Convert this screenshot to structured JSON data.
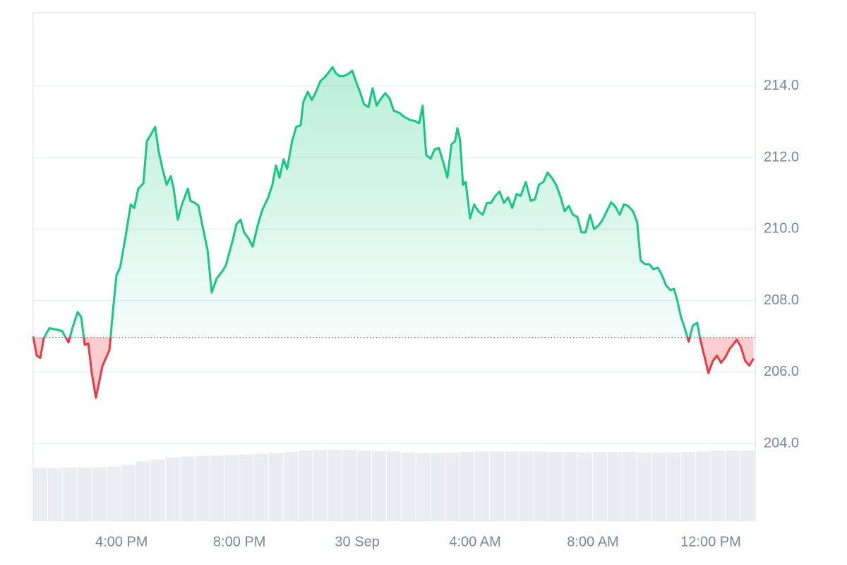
{
  "chart_data": {
    "type": "line",
    "x": [
      13.0,
      13.12,
      13.24,
      13.36,
      13.55,
      13.79,
      13.98,
      14.2,
      14.34,
      14.51,
      14.63,
      14.75,
      14.87,
      14.99,
      15.13,
      15.35,
      15.59,
      15.71,
      15.83,
      15.95,
      16.14,
      16.31,
      16.43,
      16.57,
      16.74,
      16.86,
      16.98,
      17.14,
      17.26,
      17.38,
      17.53,
      17.67,
      17.77,
      17.91,
      18.05,
      18.25,
      18.34,
      18.49,
      18.61,
      18.77,
      18.92,
      19.06,
      19.23,
      19.42,
      19.54,
      19.68,
      19.78,
      19.9,
      20.04,
      20.16,
      20.33,
      20.45,
      20.62,
      20.78,
      20.98,
      21.12,
      21.24,
      21.36,
      21.5,
      21.62,
      21.79,
      21.93,
      22.08,
      22.17,
      22.32,
      22.46,
      22.6,
      22.75,
      22.89,
      23.04,
      23.16,
      23.28,
      23.4,
      23.54,
      23.68,
      23.83,
      23.95,
      24.09,
      24.23,
      24.38,
      24.52,
      24.66,
      24.81,
      24.95,
      25.1,
      25.24,
      25.43,
      25.57,
      25.77,
      25.96,
      26.1,
      26.22,
      26.34,
      26.49,
      26.63,
      26.77,
      26.92,
      27.06,
      27.2,
      27.32,
      27.4,
      27.49,
      27.59,
      27.68,
      27.83,
      27.97,
      28.11,
      28.26,
      28.4,
      28.54,
      28.69,
      28.83,
      28.98,
      29.12,
      29.26,
      29.41,
      29.55,
      29.72,
      29.89,
      30.03,
      30.17,
      30.32,
      30.46,
      30.6,
      30.75,
      30.89,
      31.04,
      31.18,
      31.32,
      31.47,
      31.61,
      31.75,
      31.9,
      32.04,
      32.19,
      32.33,
      32.47,
      32.62,
      32.76,
      32.91,
      33.05,
      33.19,
      33.36,
      33.5,
      33.62,
      33.77,
      33.91,
      34.05,
      34.2,
      34.34,
      34.48,
      34.63,
      34.75,
      34.87,
      34.99,
      35.11,
      35.25,
      35.39,
      35.54,
      35.66,
      35.78,
      35.92,
      36.07,
      36.21,
      36.35,
      36.5,
      36.64,
      36.78,
      36.88,
      37.02,
      37.17,
      37.31,
      37.45
    ],
    "values": [
      207.0,
      206.46,
      206.4,
      206.95,
      207.23,
      207.19,
      207.15,
      206.83,
      207.25,
      207.68,
      207.54,
      206.76,
      206.8,
      205.97,
      205.28,
      206.17,
      206.62,
      207.74,
      208.72,
      208.92,
      209.81,
      210.69,
      210.59,
      211.13,
      211.28,
      212.46,
      212.62,
      212.86,
      212.17,
      211.72,
      211.24,
      211.48,
      211.13,
      210.26,
      210.69,
      211.13,
      210.79,
      210.73,
      210.65,
      210.0,
      209.41,
      208.23,
      208.62,
      208.82,
      208.98,
      209.41,
      209.71,
      210.14,
      210.26,
      209.91,
      209.71,
      209.51,
      210.1,
      210.54,
      210.89,
      211.24,
      211.78,
      211.44,
      211.95,
      211.68,
      212.46,
      212.86,
      212.9,
      213.55,
      213.84,
      213.61,
      213.84,
      214.14,
      214.24,
      214.39,
      214.53,
      214.35,
      214.28,
      214.28,
      214.33,
      214.43,
      214.14,
      213.84,
      213.49,
      213.41,
      213.94,
      213.45,
      213.65,
      213.8,
      213.65,
      213.31,
      213.25,
      213.15,
      213.06,
      213.02,
      212.96,
      213.45,
      212.07,
      211.97,
      212.23,
      212.27,
      211.87,
      211.44,
      212.37,
      212.46,
      212.82,
      212.5,
      211.24,
      211.32,
      210.3,
      210.69,
      210.5,
      210.4,
      210.73,
      210.73,
      210.93,
      211.05,
      210.73,
      210.89,
      210.59,
      210.98,
      210.93,
      211.32,
      210.79,
      210.83,
      211.24,
      211.32,
      211.58,
      211.44,
      211.24,
      210.93,
      210.5,
      210.65,
      210.4,
      210.34,
      209.91,
      209.91,
      210.4,
      210.0,
      210.1,
      210.26,
      210.5,
      210.75,
      210.63,
      210.4,
      210.69,
      210.65,
      210.5,
      210.2,
      209.12,
      209.02,
      209.02,
      208.88,
      208.92,
      208.72,
      208.43,
      208.29,
      208.33,
      207.98,
      207.54,
      207.25,
      206.85,
      207.3,
      207.38,
      206.85,
      206.46,
      205.97,
      206.31,
      206.46,
      206.26,
      206.42,
      206.65,
      206.79,
      206.91,
      206.71,
      206.31,
      206.18,
      206.38
    ],
    "baseline": 206.97,
    "up_color": "#16c784",
    "down_color": "#ea3943",
    "xlim": [
      13,
      37.51
    ],
    "xticks": [
      {
        "value": 16,
        "label": "4:00 PM"
      },
      {
        "value": 20,
        "label": "8:00 PM"
      },
      {
        "value": 24,
        "label": "30 Sep"
      },
      {
        "value": 28,
        "label": "4:00 AM"
      },
      {
        "value": 32,
        "label": "8:00 AM"
      },
      {
        "value": 36,
        "label": "12:00 PM"
      }
    ],
    "ylim": [
      201.85,
      216.05
    ],
    "yticks": [
      {
        "value": 204,
        "label": "204.0"
      },
      {
        "value": 206,
        "label": "206.0"
      },
      {
        "value": 208,
        "label": "208.0"
      },
      {
        "value": 210,
        "label": "210.0"
      },
      {
        "value": 212,
        "label": "212.0"
      },
      {
        "value": 214,
        "label": "214.0"
      }
    ],
    "grid": true,
    "volume": {
      "axis": "y2",
      "color": "#e9ecf0",
      "x": [
        13,
        13.5,
        14,
        14.5,
        15,
        15.5,
        16,
        16.5,
        17,
        17.5,
        18,
        18.5,
        19,
        19.5,
        20,
        20.5,
        21,
        21.5,
        22,
        22.5,
        23,
        23.5,
        24,
        24.5,
        25,
        25.5,
        26,
        26.5,
        27,
        27.5,
        28,
        28.5,
        29,
        29.5,
        30,
        30.5,
        31,
        31.5,
        32,
        32.5,
        33,
        33.5,
        34,
        34.5,
        35,
        35.5,
        36,
        36.5,
        37,
        37.5
      ],
      "values": [
        103,
        103,
        104,
        104,
        105,
        106,
        110,
        116,
        120,
        124,
        126,
        127,
        128,
        129,
        130,
        131,
        133,
        135,
        138,
        139,
        139,
        139,
        138,
        137,
        136,
        134,
        133,
        133,
        134,
        135,
        136,
        136,
        136,
        136,
        136,
        135,
        135,
        134,
        135,
        135,
        135,
        134,
        134,
        134,
        135,
        136,
        138,
        138,
        138,
        138
      ]
    },
    "y2lim": [
      0,
      1000
    ]
  }
}
